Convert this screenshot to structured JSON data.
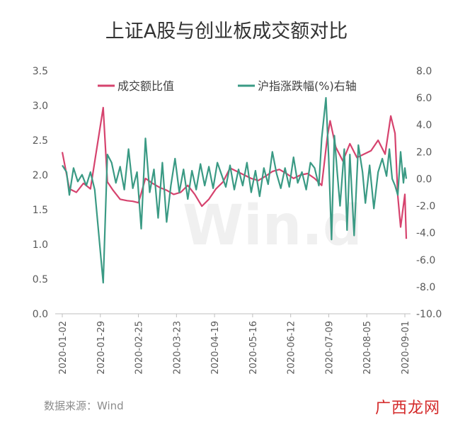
{
  "chart_data": {
    "type": "line",
    "title": "上证A股与创业板成交额对比",
    "xlabel": "",
    "ylabel": "",
    "x_ticks": [
      "2020-01-02",
      "2020-01-29",
      "2020-02-25",
      "2020-03-23",
      "2020-04-19",
      "2020-05-16",
      "2020-06-12",
      "2020-07-09",
      "2020-08-05",
      "2020-09-01"
    ],
    "ylim_left": [
      0.0,
      3.5
    ],
    "yticks_left": [
      "0.0",
      "0.5",
      "1.0",
      "1.5",
      "2.0",
      "2.5",
      "3.0",
      "3.5"
    ],
    "ylim_right": [
      -10.0,
      8.0
    ],
    "yticks_right": [
      "-10.0",
      "-8.0",
      "-6.0",
      "-4.0",
      "-2.0",
      "0.0",
      "2.0",
      "4.0",
      "6.0",
      "8.0"
    ],
    "legend_position": "top",
    "grid": false,
    "series": [
      {
        "name": "成交额比值",
        "axis": "left",
        "color": "#d6436e",
        "points": [
          [
            "2020-01-02",
            2.33
          ],
          [
            "2020-01-07",
            1.8
          ],
          [
            "2020-01-12",
            1.75
          ],
          [
            "2020-01-17",
            1.88
          ],
          [
            "2020-01-22",
            1.8
          ],
          [
            "2020-01-31",
            2.97
          ],
          [
            "2020-02-03",
            1.9
          ],
          [
            "2020-02-07",
            1.78
          ],
          [
            "2020-02-12",
            1.65
          ],
          [
            "2020-02-17",
            1.63
          ],
          [
            "2020-02-21",
            1.62
          ],
          [
            "2020-02-25",
            1.6
          ],
          [
            "2020-03-01",
            1.95
          ],
          [
            "2020-03-06",
            1.88
          ],
          [
            "2020-03-11",
            1.82
          ],
          [
            "2020-03-16",
            1.78
          ],
          [
            "2020-03-21",
            1.72
          ],
          [
            "2020-03-26",
            1.75
          ],
          [
            "2020-03-31",
            1.85
          ],
          [
            "2020-04-05",
            1.72
          ],
          [
            "2020-04-10",
            1.55
          ],
          [
            "2020-04-15",
            1.65
          ],
          [
            "2020-04-20",
            1.8
          ],
          [
            "2020-04-25",
            1.9
          ],
          [
            "2020-04-30",
            2.1
          ],
          [
            "2020-05-05",
            2.05
          ],
          [
            "2020-05-10",
            2.0
          ],
          [
            "2020-05-15",
            1.95
          ],
          [
            "2020-05-20",
            1.92
          ],
          [
            "2020-05-25",
            1.98
          ],
          [
            "2020-05-30",
            2.05
          ],
          [
            "2020-06-04",
            2.08
          ],
          [
            "2020-06-09",
            2.02
          ],
          [
            "2020-06-14",
            1.95
          ],
          [
            "2020-06-19",
            2.0
          ],
          [
            "2020-06-24",
            2.02
          ],
          [
            "2020-06-29",
            1.95
          ],
          [
            "2020-07-04",
            1.85
          ],
          [
            "2020-07-08",
            2.55
          ],
          [
            "2020-07-10",
            2.78
          ],
          [
            "2020-07-14",
            2.4
          ],
          [
            "2020-07-19",
            2.2
          ],
          [
            "2020-07-24",
            2.45
          ],
          [
            "2020-07-29",
            2.25
          ],
          [
            "2020-08-03",
            2.3
          ],
          [
            "2020-08-08",
            2.35
          ],
          [
            "2020-08-13",
            2.5
          ],
          [
            "2020-08-18",
            2.3
          ],
          [
            "2020-08-22",
            2.85
          ],
          [
            "2020-08-25",
            2.6
          ],
          [
            "2020-08-27",
            1.7
          ],
          [
            "2020-08-29",
            1.25
          ],
          [
            "2020-09-01",
            1.72
          ],
          [
            "2020-09-02",
            1.08
          ]
        ]
      },
      {
        "name": "沪指涨跌幅(%)右轴",
        "axis": "right",
        "color": "#3a9a84",
        "points": [
          [
            "2020-01-02",
            1.0
          ],
          [
            "2020-01-05",
            0.5
          ],
          [
            "2020-01-07",
            -1.2
          ],
          [
            "2020-01-10",
            0.8
          ],
          [
            "2020-01-13",
            -0.2
          ],
          [
            "2020-01-16",
            0.3
          ],
          [
            "2020-01-19",
            -0.5
          ],
          [
            "2020-01-22",
            0.5
          ],
          [
            "2020-01-25",
            -0.8
          ],
          [
            "2020-01-31",
            -7.7
          ],
          [
            "2020-02-03",
            1.8
          ],
          [
            "2020-02-06",
            1.2
          ],
          [
            "2020-02-09",
            -0.3
          ],
          [
            "2020-02-12",
            0.9
          ],
          [
            "2020-02-15",
            -0.8
          ],
          [
            "2020-02-18",
            2.2
          ],
          [
            "2020-02-21",
            -0.7
          ],
          [
            "2020-02-24",
            0.5
          ],
          [
            "2020-02-27",
            -3.7
          ],
          [
            "2020-03-01",
            3.0
          ],
          [
            "2020-03-04",
            -1.0
          ],
          [
            "2020-03-07",
            0.7
          ],
          [
            "2020-03-10",
            -2.9
          ],
          [
            "2020-03-13",
            1.2
          ],
          [
            "2020-03-16",
            -3.2
          ],
          [
            "2020-03-19",
            -0.5
          ],
          [
            "2020-03-22",
            1.5
          ],
          [
            "2020-03-25",
            -1.0
          ],
          [
            "2020-03-28",
            0.7
          ],
          [
            "2020-03-31",
            -1.5
          ],
          [
            "2020-04-03",
            0.6
          ],
          [
            "2020-04-06",
            -0.8
          ],
          [
            "2020-04-09",
            1.1
          ],
          [
            "2020-04-12",
            -0.5
          ],
          [
            "2020-04-15",
            0.9
          ],
          [
            "2020-04-18",
            -0.7
          ],
          [
            "2020-04-21",
            1.2
          ],
          [
            "2020-04-24",
            0.3
          ],
          [
            "2020-04-27",
            -0.6
          ],
          [
            "2020-04-30",
            1.0
          ],
          [
            "2020-05-03",
            -0.8
          ],
          [
            "2020-05-06",
            0.7
          ],
          [
            "2020-05-09",
            -0.5
          ],
          [
            "2020-05-12",
            1.2
          ],
          [
            "2020-05-15",
            -1.0
          ],
          [
            "2020-05-18",
            0.6
          ],
          [
            "2020-05-21",
            -1.3
          ],
          [
            "2020-05-24",
            0.8
          ],
          [
            "2020-05-27",
            -0.4
          ],
          [
            "2020-05-30",
            2.0
          ],
          [
            "2020-06-02",
            0.4
          ],
          [
            "2020-06-05",
            -0.7
          ],
          [
            "2020-06-08",
            0.8
          ],
          [
            "2020-06-11",
            -0.6
          ],
          [
            "2020-06-14",
            1.6
          ],
          [
            "2020-06-17",
            -0.3
          ],
          [
            "2020-06-20",
            0.5
          ],
          [
            "2020-06-23",
            -0.8
          ],
          [
            "2020-06-26",
            1.2
          ],
          [
            "2020-06-29",
            0.8
          ],
          [
            "2020-07-02",
            -0.5
          ],
          [
            "2020-07-04",
            3.0
          ],
          [
            "2020-07-07",
            6.0
          ],
          [
            "2020-07-09",
            1.5
          ],
          [
            "2020-07-11",
            -4.5
          ],
          [
            "2020-07-13",
            3.2
          ],
          [
            "2020-07-15",
            0.5
          ],
          [
            "2020-07-17",
            -2.0
          ],
          [
            "2020-07-20",
            2.2
          ],
          [
            "2020-07-22",
            -3.8
          ],
          [
            "2020-07-24",
            1.8
          ],
          [
            "2020-07-27",
            -4.2
          ],
          [
            "2020-07-30",
            2.5
          ],
          [
            "2020-08-02",
            0.5
          ],
          [
            "2020-08-04",
            -1.8
          ],
          [
            "2020-08-07",
            1.0
          ],
          [
            "2020-08-10",
            -2.2
          ],
          [
            "2020-08-13",
            0.5
          ],
          [
            "2020-08-16",
            1.5
          ],
          [
            "2020-08-19",
            0.2
          ],
          [
            "2020-08-21",
            2.2
          ],
          [
            "2020-08-23",
            0.0
          ],
          [
            "2020-08-25",
            -0.5
          ],
          [
            "2020-08-27",
            -1.2
          ],
          [
            "2020-08-29",
            2.0
          ],
          [
            "2020-08-31",
            -0.3
          ],
          [
            "2020-09-01",
            0.8
          ],
          [
            "2020-09-02",
            0.0
          ]
        ]
      }
    ]
  },
  "watermark": "Win.d",
  "source": "数据来源：Wind",
  "brand": "广西龙网"
}
